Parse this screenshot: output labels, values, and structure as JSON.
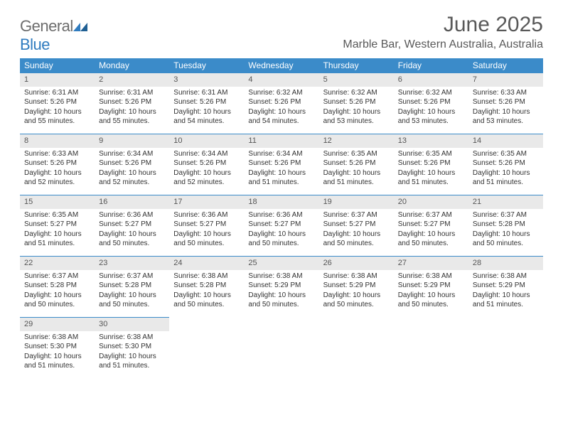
{
  "brand": {
    "part1": "General",
    "part2": "Blue"
  },
  "title": "June 2025",
  "location": "Marble Bar, Western Australia, Australia",
  "colors": {
    "header_bg": "#3b8bc9",
    "header_fg": "#ffffff",
    "daynum_bg": "#e9e9e9",
    "rule": "#3b8bc9",
    "text": "#333333",
    "title": "#595959"
  },
  "weekdays": [
    "Sunday",
    "Monday",
    "Tuesday",
    "Wednesday",
    "Thursday",
    "Friday",
    "Saturday"
  ],
  "weeks": [
    [
      {
        "n": "1",
        "sr": "Sunrise: 6:31 AM",
        "ss": "Sunset: 5:26 PM",
        "d1": "Daylight: 10 hours",
        "d2": "and 55 minutes."
      },
      {
        "n": "2",
        "sr": "Sunrise: 6:31 AM",
        "ss": "Sunset: 5:26 PM",
        "d1": "Daylight: 10 hours",
        "d2": "and 55 minutes."
      },
      {
        "n": "3",
        "sr": "Sunrise: 6:31 AM",
        "ss": "Sunset: 5:26 PM",
        "d1": "Daylight: 10 hours",
        "d2": "and 54 minutes."
      },
      {
        "n": "4",
        "sr": "Sunrise: 6:32 AM",
        "ss": "Sunset: 5:26 PM",
        "d1": "Daylight: 10 hours",
        "d2": "and 54 minutes."
      },
      {
        "n": "5",
        "sr": "Sunrise: 6:32 AM",
        "ss": "Sunset: 5:26 PM",
        "d1": "Daylight: 10 hours",
        "d2": "and 53 minutes."
      },
      {
        "n": "6",
        "sr": "Sunrise: 6:32 AM",
        "ss": "Sunset: 5:26 PM",
        "d1": "Daylight: 10 hours",
        "d2": "and 53 minutes."
      },
      {
        "n": "7",
        "sr": "Sunrise: 6:33 AM",
        "ss": "Sunset: 5:26 PM",
        "d1": "Daylight: 10 hours",
        "d2": "and 53 minutes."
      }
    ],
    [
      {
        "n": "8",
        "sr": "Sunrise: 6:33 AM",
        "ss": "Sunset: 5:26 PM",
        "d1": "Daylight: 10 hours",
        "d2": "and 52 minutes."
      },
      {
        "n": "9",
        "sr": "Sunrise: 6:34 AM",
        "ss": "Sunset: 5:26 PM",
        "d1": "Daylight: 10 hours",
        "d2": "and 52 minutes."
      },
      {
        "n": "10",
        "sr": "Sunrise: 6:34 AM",
        "ss": "Sunset: 5:26 PM",
        "d1": "Daylight: 10 hours",
        "d2": "and 52 minutes."
      },
      {
        "n": "11",
        "sr": "Sunrise: 6:34 AM",
        "ss": "Sunset: 5:26 PM",
        "d1": "Daylight: 10 hours",
        "d2": "and 51 minutes."
      },
      {
        "n": "12",
        "sr": "Sunrise: 6:35 AM",
        "ss": "Sunset: 5:26 PM",
        "d1": "Daylight: 10 hours",
        "d2": "and 51 minutes."
      },
      {
        "n": "13",
        "sr": "Sunrise: 6:35 AM",
        "ss": "Sunset: 5:26 PM",
        "d1": "Daylight: 10 hours",
        "d2": "and 51 minutes."
      },
      {
        "n": "14",
        "sr": "Sunrise: 6:35 AM",
        "ss": "Sunset: 5:26 PM",
        "d1": "Daylight: 10 hours",
        "d2": "and 51 minutes."
      }
    ],
    [
      {
        "n": "15",
        "sr": "Sunrise: 6:35 AM",
        "ss": "Sunset: 5:27 PM",
        "d1": "Daylight: 10 hours",
        "d2": "and 51 minutes."
      },
      {
        "n": "16",
        "sr": "Sunrise: 6:36 AM",
        "ss": "Sunset: 5:27 PM",
        "d1": "Daylight: 10 hours",
        "d2": "and 50 minutes."
      },
      {
        "n": "17",
        "sr": "Sunrise: 6:36 AM",
        "ss": "Sunset: 5:27 PM",
        "d1": "Daylight: 10 hours",
        "d2": "and 50 minutes."
      },
      {
        "n": "18",
        "sr": "Sunrise: 6:36 AM",
        "ss": "Sunset: 5:27 PM",
        "d1": "Daylight: 10 hours",
        "d2": "and 50 minutes."
      },
      {
        "n": "19",
        "sr": "Sunrise: 6:37 AM",
        "ss": "Sunset: 5:27 PM",
        "d1": "Daylight: 10 hours",
        "d2": "and 50 minutes."
      },
      {
        "n": "20",
        "sr": "Sunrise: 6:37 AM",
        "ss": "Sunset: 5:27 PM",
        "d1": "Daylight: 10 hours",
        "d2": "and 50 minutes."
      },
      {
        "n": "21",
        "sr": "Sunrise: 6:37 AM",
        "ss": "Sunset: 5:28 PM",
        "d1": "Daylight: 10 hours",
        "d2": "and 50 minutes."
      }
    ],
    [
      {
        "n": "22",
        "sr": "Sunrise: 6:37 AM",
        "ss": "Sunset: 5:28 PM",
        "d1": "Daylight: 10 hours",
        "d2": "and 50 minutes."
      },
      {
        "n": "23",
        "sr": "Sunrise: 6:37 AM",
        "ss": "Sunset: 5:28 PM",
        "d1": "Daylight: 10 hours",
        "d2": "and 50 minutes."
      },
      {
        "n": "24",
        "sr": "Sunrise: 6:38 AM",
        "ss": "Sunset: 5:28 PM",
        "d1": "Daylight: 10 hours",
        "d2": "and 50 minutes."
      },
      {
        "n": "25",
        "sr": "Sunrise: 6:38 AM",
        "ss": "Sunset: 5:29 PM",
        "d1": "Daylight: 10 hours",
        "d2": "and 50 minutes."
      },
      {
        "n": "26",
        "sr": "Sunrise: 6:38 AM",
        "ss": "Sunset: 5:29 PM",
        "d1": "Daylight: 10 hours",
        "d2": "and 50 minutes."
      },
      {
        "n": "27",
        "sr": "Sunrise: 6:38 AM",
        "ss": "Sunset: 5:29 PM",
        "d1": "Daylight: 10 hours",
        "d2": "and 50 minutes."
      },
      {
        "n": "28",
        "sr": "Sunrise: 6:38 AM",
        "ss": "Sunset: 5:29 PM",
        "d1": "Daylight: 10 hours",
        "d2": "and 51 minutes."
      }
    ],
    [
      {
        "n": "29",
        "sr": "Sunrise: 6:38 AM",
        "ss": "Sunset: 5:30 PM",
        "d1": "Daylight: 10 hours",
        "d2": "and 51 minutes."
      },
      {
        "n": "30",
        "sr": "Sunrise: 6:38 AM",
        "ss": "Sunset: 5:30 PM",
        "d1": "Daylight: 10 hours",
        "d2": "and 51 minutes."
      },
      null,
      null,
      null,
      null,
      null
    ]
  ]
}
